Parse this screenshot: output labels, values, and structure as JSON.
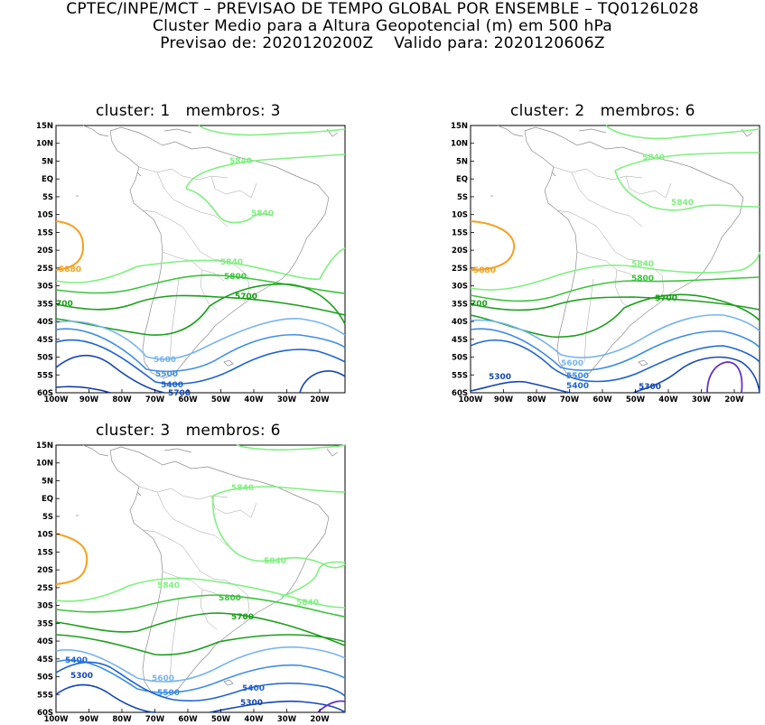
{
  "header": {
    "line1": "CPTEC/INPE/MCT – PREVISAO DE TEMPO GLOBAL POR ENSEMBLE – TQ0126L028",
    "line2": "Cluster Medio para a Altura Geopotencial (m) em 500 hPa",
    "line3": "Previsao de: 2020120200Z    Valido para: 2020120606Z"
  },
  "axes": {
    "lat_labels": [
      "15N",
      "10N",
      "5N",
      "EQ",
      "5S",
      "10S",
      "15S",
      "20S",
      "25S",
      "30S",
      "35S",
      "40S",
      "45S",
      "50S",
      "55S",
      "60S"
    ],
    "lon_labels": [
      "100W",
      "90W",
      "80W",
      "70W",
      "60W",
      "50W",
      "40W",
      "30W",
      "20W"
    ]
  },
  "colors": {
    "c5840": "#7ff07f",
    "c5800": "#3ac43a",
    "c5700": "#1a9f1a",
    "c5600": "#78b4f0",
    "c5500": "#3c8ce8",
    "c5400": "#1e64d2",
    "c5300": "#1446b4",
    "c5700b": "#0a32a0",
    "c5200": "#6432c8",
    "c5880": "#f5a01e"
  },
  "panels": [
    {
      "title": "cluster: 1   membros: 3",
      "labels": {
        "l5840a": "5840",
        "l5840b": "5840",
        "l5840c": "5840",
        "l5880": "5880",
        "l5800": "5800",
        "l5700a": "5700",
        "l5700b": "700",
        "l5600": "5600",
        "l5500": "5500",
        "l5400": "5400",
        "l5700c": "5700"
      }
    },
    {
      "title": "cluster: 2   membros: 6",
      "labels": {
        "l5840a": "5840",
        "l5840b": "5840",
        "l5840c": "5840",
        "l5880": "5880",
        "l5800": "5800",
        "l5700a": "5700",
        "l5700b": "700",
        "l5600": "5600",
        "l5500": "5500",
        "l5400": "5400",
        "l5300a": "5300",
        "l5300b": "5300"
      }
    },
    {
      "title": "cluster: 3   membros: 6",
      "labels": {
        "l5840a": "5840",
        "l5840b": "5840",
        "l5840c": "5840",
        "l5840d": "5840",
        "l5800": "5800",
        "l5700": "5700",
        "l5600": "5600",
        "l5500": "5500",
        "l5400a": "5400",
        "l5400b": "5400",
        "l5300a": "5300",
        "l5300b": "5300"
      }
    }
  ]
}
